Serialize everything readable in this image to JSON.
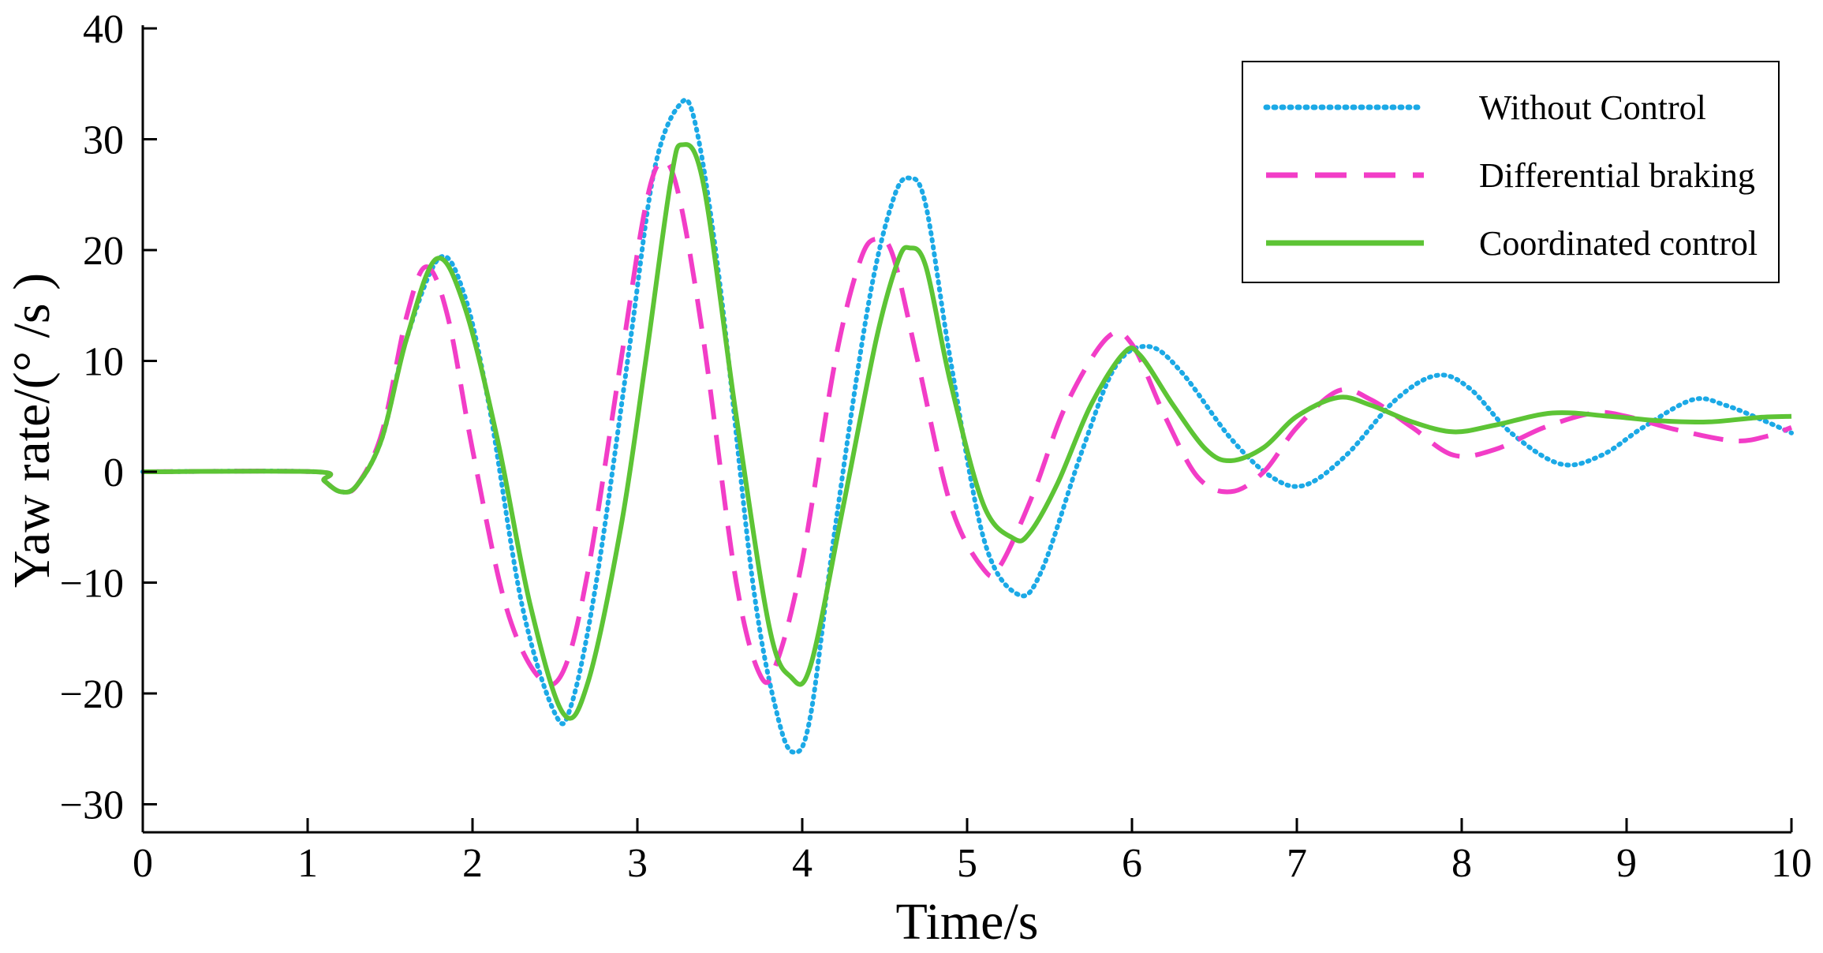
{
  "chart_data": {
    "type": "line",
    "title": "",
    "xlabel": "Time/s",
    "ylabel": "Yaw rate/(° /s )",
    "xlim": [
      0,
      10
    ],
    "ylim": [
      -33,
      40
    ],
    "x_ticks": [
      0,
      1,
      2,
      3,
      4,
      5,
      6,
      7,
      8,
      9,
      10
    ],
    "x_tick_labels": [
      "0",
      "1",
      "2",
      "3",
      "4",
      "5",
      "6",
      "7",
      "8",
      "9",
      "10"
    ],
    "y_ticks": [
      40,
      30,
      20,
      10,
      0,
      -10,
      -20,
      -30
    ],
    "y_tick_labels": [
      "40",
      "30",
      "20",
      "10",
      "0",
      "−10",
      "−20",
      "−30"
    ],
    "grid": false,
    "legend_position": "top-right",
    "series": [
      {
        "name": "Without Control",
        "color": "#1ba9e6",
        "style": "dotted",
        "points": [
          [
            0,
            0
          ],
          [
            1.05,
            0
          ],
          [
            1.1,
            -0.8
          ],
          [
            1.2,
            -1.8
          ],
          [
            1.3,
            -1.2
          ],
          [
            1.45,
            3
          ],
          [
            1.6,
            12
          ],
          [
            1.8,
            19.3
          ],
          [
            1.95,
            16
          ],
          [
            2.1,
            6
          ],
          [
            2.3,
            -12
          ],
          [
            2.5,
            -21.8
          ],
          [
            2.6,
            -21
          ],
          [
            2.75,
            -10
          ],
          [
            2.95,
            11
          ],
          [
            3.1,
            27
          ],
          [
            3.25,
            33
          ],
          [
            3.35,
            31.5
          ],
          [
            3.5,
            17
          ],
          [
            3.7,
            -10
          ],
          [
            3.85,
            -22
          ],
          [
            3.95,
            -25.3
          ],
          [
            4.05,
            -22
          ],
          [
            4.2,
            -5
          ],
          [
            4.4,
            15
          ],
          [
            4.55,
            24.5
          ],
          [
            4.65,
            26.5
          ],
          [
            4.75,
            24
          ],
          [
            4.9,
            10
          ],
          [
            5.1,
            -6
          ],
          [
            5.3,
            -11
          ],
          [
            5.45,
            -9
          ],
          [
            5.7,
            2
          ],
          [
            5.9,
            9.5
          ],
          [
            6.1,
            11.3
          ],
          [
            6.3,
            9
          ],
          [
            6.6,
            3
          ],
          [
            6.85,
            -0.5
          ],
          [
            7.05,
            -1.2
          ],
          [
            7.3,
            1.5
          ],
          [
            7.6,
            6.5
          ],
          [
            7.85,
            8.7
          ],
          [
            8.05,
            7.5
          ],
          [
            8.3,
            3.5
          ],
          [
            8.6,
            0.7
          ],
          [
            8.85,
            1.5
          ],
          [
            9.1,
            4
          ],
          [
            9.4,
            6.5
          ],
          [
            9.6,
            6
          ],
          [
            9.85,
            4.5
          ],
          [
            10,
            3.5
          ]
        ]
      },
      {
        "name": "Differential braking",
        "color": "#f23dc7",
        "style": "dashed",
        "points": [
          [
            0,
            0
          ],
          [
            1.05,
            0
          ],
          [
            1.1,
            -0.8
          ],
          [
            1.2,
            -1.8
          ],
          [
            1.3,
            -1.2
          ],
          [
            1.45,
            3.5
          ],
          [
            1.6,
            14
          ],
          [
            1.72,
            18.5
          ],
          [
            1.85,
            14
          ],
          [
            2.0,
            2
          ],
          [
            2.2,
            -12
          ],
          [
            2.4,
            -18.5
          ],
          [
            2.55,
            -18
          ],
          [
            2.7,
            -9
          ],
          [
            2.9,
            10
          ],
          [
            3.05,
            24
          ],
          [
            3.15,
            28
          ],
          [
            3.25,
            25
          ],
          [
            3.4,
            12
          ],
          [
            3.6,
            -10
          ],
          [
            3.75,
            -18.5
          ],
          [
            3.85,
            -17
          ],
          [
            4.0,
            -8
          ],
          [
            4.2,
            10
          ],
          [
            4.35,
            19
          ],
          [
            4.45,
            21
          ],
          [
            4.55,
            19.5
          ],
          [
            4.7,
            10
          ],
          [
            4.9,
            -3
          ],
          [
            5.1,
            -8.8
          ],
          [
            5.2,
            -8.5
          ],
          [
            5.4,
            -2
          ],
          [
            5.6,
            6
          ],
          [
            5.85,
            12.1
          ],
          [
            6.0,
            11.5
          ],
          [
            6.2,
            5
          ],
          [
            6.4,
            -0.5
          ],
          [
            6.6,
            -1.8
          ],
          [
            6.8,
            0
          ],
          [
            7.0,
            4
          ],
          [
            7.25,
            7.3
          ],
          [
            7.45,
            6.5
          ],
          [
            7.7,
            4
          ],
          [
            7.95,
            1.5
          ],
          [
            8.2,
            2
          ],
          [
            8.5,
            4
          ],
          [
            8.8,
            5.3
          ],
          [
            9.0,
            5
          ],
          [
            9.3,
            3.8
          ],
          [
            9.65,
            2.8
          ],
          [
            9.85,
            3.2
          ],
          [
            10,
            4
          ]
        ]
      },
      {
        "name": "Coordinated control",
        "color": "#5dc435",
        "style": "solid",
        "points": [
          [
            0,
            0
          ],
          [
            1.05,
            0
          ],
          [
            1.1,
            -0.8
          ],
          [
            1.2,
            -1.8
          ],
          [
            1.3,
            -1.2
          ],
          [
            1.45,
            3
          ],
          [
            1.6,
            12
          ],
          [
            1.78,
            19.2
          ],
          [
            1.95,
            15
          ],
          [
            2.15,
            3
          ],
          [
            2.35,
            -12
          ],
          [
            2.55,
            -21.8
          ],
          [
            2.7,
            -19
          ],
          [
            2.9,
            -5
          ],
          [
            3.05,
            10
          ],
          [
            3.2,
            26
          ],
          [
            3.27,
            29.5
          ],
          [
            3.4,
            26
          ],
          [
            3.6,
            5
          ],
          [
            3.8,
            -14
          ],
          [
            3.93,
            -18.5
          ],
          [
            4.05,
            -17.5
          ],
          [
            4.25,
            -3
          ],
          [
            4.45,
            12
          ],
          [
            4.58,
            19
          ],
          [
            4.65,
            20.2
          ],
          [
            4.75,
            18.5
          ],
          [
            4.9,
            8
          ],
          [
            5.1,
            -3
          ],
          [
            5.28,
            -6
          ],
          [
            5.38,
            -5.5
          ],
          [
            5.55,
            -1
          ],
          [
            5.75,
            6
          ],
          [
            5.95,
            10.7
          ],
          [
            6.05,
            10.5
          ],
          [
            6.25,
            6
          ],
          [
            6.45,
            2
          ],
          [
            6.6,
            1
          ],
          [
            6.8,
            2.2
          ],
          [
            7.0,
            5
          ],
          [
            7.25,
            6.7
          ],
          [
            7.45,
            6
          ],
          [
            7.7,
            4.5
          ],
          [
            7.95,
            3.6
          ],
          [
            8.2,
            4.2
          ],
          [
            8.55,
            5.3
          ],
          [
            8.9,
            5
          ],
          [
            9.2,
            4.6
          ],
          [
            9.5,
            4.5
          ],
          [
            9.8,
            4.9
          ],
          [
            10,
            5
          ]
        ]
      }
    ]
  }
}
